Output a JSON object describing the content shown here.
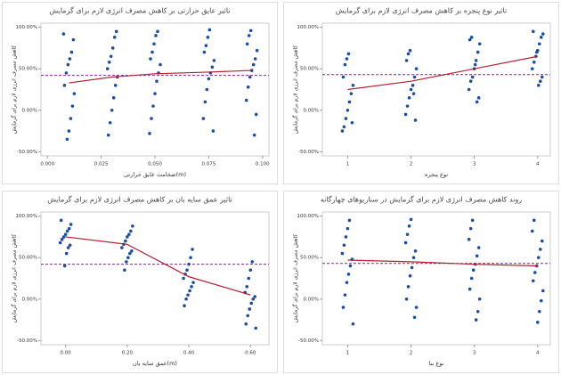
{
  "chart_data": [
    {
      "type": "strip",
      "title": "تاثیر عایق حرارتی بر کاهش مصرف انرژی لازم برای گرمایش",
      "xlabel": "ضخامت عایق حرارتی(m)",
      "ylabel": "کاهش مصرف انرژی لازم برای گرمایش",
      "xlim": [
        -0.003,
        0.103
      ],
      "xticks": [
        {
          "value": 0,
          "label": "0.000"
        },
        {
          "value": 0.025,
          "label": "0.025"
        },
        {
          "value": 0.05,
          "label": "0.050"
        },
        {
          "value": 0.075,
          "label": "0.075"
        },
        {
          "value": 0.1,
          "label": "0.100"
        }
      ],
      "ylim": [
        -55,
        105
      ],
      "yticks": [
        {
          "value": 100,
          "label": "100.00%"
        },
        {
          "value": 50,
          "label": "50.00%"
        },
        {
          "value": 0,
          "label": "0.00%"
        },
        {
          "value": -50,
          "label": "-50.00%"
        }
      ],
      "x": [
        0.01,
        0.03,
        0.05,
        0.075,
        0.095
      ],
      "color": "#1f4e9c",
      "line_color": "#b22233",
      "reference_color": "#7b2a8a",
      "reference": 42,
      "means": [
        33,
        40,
        44,
        46,
        48
      ],
      "points": [
        [
          92,
          85,
          70,
          62,
          55,
          45,
          30,
          20,
          5,
          -10,
          -25,
          -35
        ],
        [
          95,
          88,
          75,
          65,
          58,
          50,
          40,
          30,
          15,
          0,
          -15,
          -30
        ],
        [
          95,
          90,
          80,
          70,
          62,
          55,
          45,
          35,
          20,
          5,
          -10,
          -28
        ],
        [
          97,
          88,
          78,
          70,
          60,
          52,
          45,
          38,
          25,
          10,
          -10,
          -25
        ],
        [
          96,
          90,
          80,
          72,
          62,
          55,
          48,
          40,
          28,
          12,
          -5,
          -30
        ]
      ]
    },
    {
      "type": "strip",
      "title": "تاثیر نوع پنجره بر کاهش مصرف انرژی لازم برای گرمایش",
      "xlabel": "نوع پنجره",
      "ylabel": "کاهش مصرف انرژی لازم برای گرمایش",
      "xlim": [
        0.6,
        4.2
      ],
      "xticks": [
        1,
        2,
        3,
        4
      ],
      "ylim": [
        -55,
        105
      ],
      "yticks": [
        {
          "value": 100,
          "label": "100.00%"
        },
        {
          "value": 50,
          "label": "50.00%"
        },
        {
          "value": 0,
          "label": "0.00%"
        },
        {
          "value": -50,
          "label": "-50.00%"
        }
      ],
      "x": [
        1,
        2,
        3,
        4
      ],
      "color": "#1f4e9c",
      "line_color": "#b22233",
      "reference_color": "#7b2a8a",
      "reference": 43,
      "means": [
        25,
        35,
        50,
        65
      ],
      "points": [
        [
          68,
          62,
          55,
          40,
          30,
          20,
          10,
          0,
          -10,
          -20,
          -25,
          -15
        ],
        [
          72,
          68,
          60,
          50,
          40,
          30,
          25,
          15,
          5,
          -5,
          -12,
          20
        ],
        [
          88,
          85,
          80,
          70,
          60,
          50,
          40,
          35,
          25,
          15,
          10,
          55
        ],
        [
          95,
          92,
          88,
          80,
          72,
          65,
          58,
          50,
          40,
          35,
          30,
          70
        ]
      ]
    },
    {
      "type": "strip",
      "title": "تاثیر عمق سایه بان بر کاهش مصرف انرژی لازم برای گرمایش",
      "xlabel": "عمق سایه بان(m)",
      "ylabel": "کاهش مصرف انرژی لازم برای گرمایش",
      "xlim": [
        -0.08,
        0.66
      ],
      "xticks": [
        {
          "value": 0,
          "label": "0.00"
        },
        {
          "value": 0.2,
          "label": "0.20"
        },
        {
          "value": 0.4,
          "label": "0.40"
        },
        {
          "value": 0.6,
          "label": "0.60"
        }
      ],
      "ylim": [
        -55,
        105
      ],
      "yticks": [
        {
          "value": 100,
          "label": "100.00%"
        },
        {
          "value": 50,
          "label": "50.00%"
        },
        {
          "value": 0,
          "label": "0.00%"
        },
        {
          "value": -50,
          "label": "-50.00%"
        }
      ],
      "x": [
        0,
        0.2,
        0.4,
        0.6
      ],
      "color": "#1f4e9c",
      "line_color": "#b22233",
      "reference_color": "#7b2a8a",
      "reference": 42,
      "means": [
        75,
        66,
        27,
        5
      ],
      "points": [
        [
          95,
          90,
          85,
          82,
          78,
          75,
          72,
          68,
          65,
          62,
          55,
          40
        ],
        [
          88,
          82,
          78,
          75,
          70,
          66,
          62,
          58,
          55,
          50,
          45,
          35
        ],
        [
          60,
          50,
          42,
          35,
          30,
          25,
          20,
          15,
          10,
          5,
          0,
          -8
        ],
        [
          45,
          35,
          25,
          15,
          8,
          3,
          0,
          -5,
          -12,
          -20,
          -30,
          -35
        ]
      ]
    },
    {
      "type": "strip",
      "title": "روند کاهش مصرف انرژی لازم برای گرمایش در سناریوهای چهارگانه",
      "xlabel": "نوع بنا",
      "ylabel": "کاهش مصرف انرژی لازم برای گرمایش",
      "xlim": [
        0.6,
        4.2
      ],
      "xticks": [
        1,
        2,
        3,
        4
      ],
      "ylim": [
        -55,
        105
      ],
      "yticks": [
        {
          "value": 100,
          "label": "100.00%"
        },
        {
          "value": 50,
          "label": "50.00%"
        },
        {
          "value": 0,
          "label": "0.00%"
        },
        {
          "value": -50,
          "label": "-50.00%"
        }
      ],
      "x": [
        1,
        2,
        3,
        4
      ],
      "color": "#1f4e9c",
      "line_color": "#b22233",
      "reference_color": "#7b2a8a",
      "reference": 43,
      "means": [
        47,
        45,
        42,
        40
      ],
      "points": [
        [
          95,
          85,
          75,
          65,
          55,
          48,
          40,
          30,
          20,
          5,
          -10,
          -30
        ],
        [
          96,
          88,
          78,
          68,
          58,
          50,
          38,
          28,
          15,
          0,
          -10,
          -22
        ],
        [
          95,
          85,
          72,
          62,
          52,
          42,
          35,
          25,
          12,
          0,
          -15,
          -25
        ],
        [
          95,
          82,
          70,
          60,
          50,
          40,
          32,
          22,
          10,
          -2,
          -15,
          -28
        ]
      ]
    }
  ]
}
